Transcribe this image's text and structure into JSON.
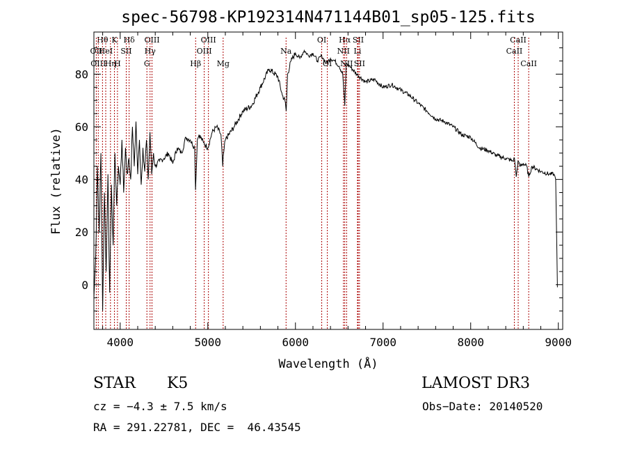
{
  "chart_data": {
    "type": "line",
    "title": "spec-56798-KP192314N471144B01_sp05-125.fits",
    "xlabel": "Wavelength (Å)",
    "ylabel": "Flux (relative)",
    "xlim": [
      3700,
      9050
    ],
    "ylim": [
      -17,
      96
    ],
    "xticks": [
      4000,
      5000,
      6000,
      7000,
      8000,
      9000
    ],
    "yticks": [
      0,
      20,
      40,
      60,
      80
    ],
    "xtick_labels": [
      "4000",
      "5000",
      "6000",
      "7000",
      "8000",
      "9000"
    ],
    "ytick_labels": [
      "0",
      "20",
      "40",
      "60",
      "80"
    ],
    "series": [
      {
        "name": "flux",
        "x": [
          3700,
          3720,
          3740,
          3760,
          3780,
          3800,
          3820,
          3840,
          3860,
          3880,
          3900,
          3920,
          3940,
          3960,
          3980,
          4000,
          4020,
          4040,
          4060,
          4080,
          4100,
          4120,
          4140,
          4160,
          4180,
          4200,
          4220,
          4240,
          4260,
          4280,
          4300,
          4320,
          4340,
          4360,
          4380,
          4400,
          4450,
          4500,
          4550,
          4600,
          4650,
          4700,
          4750,
          4800,
          4850,
          4860,
          4880,
          4900,
          4950,
          5000,
          5050,
          5100,
          5150,
          5170,
          5180,
          5200,
          5300,
          5400,
          5500,
          5600,
          5700,
          5800,
          5850,
          5880,
          5895,
          5910,
          5950,
          6000,
          6050,
          6100,
          6150,
          6200,
          6250,
          6300,
          6350,
          6400,
          6450,
          6500,
          6540,
          6563,
          6580,
          6620,
          6700,
          6800,
          6900,
          7000,
          7100,
          7200,
          7300,
          7400,
          7500,
          7600,
          7700,
          7800,
          7900,
          8000,
          8100,
          8200,
          8300,
          8400,
          8480,
          8500,
          8520,
          8540,
          8560,
          8600,
          8640,
          8662,
          8700,
          8800,
          8900,
          8950,
          8970,
          8990
        ],
        "values": [
          -5,
          10,
          45,
          20,
          50,
          -10,
          35,
          5,
          42,
          -3,
          38,
          15,
          50,
          30,
          45,
          38,
          55,
          35,
          52,
          42,
          48,
          40,
          60,
          45,
          62,
          42,
          55,
          38,
          52,
          43,
          55,
          40,
          58,
          42,
          50,
          45,
          47,
          48,
          50,
          46,
          52,
          50,
          56,
          55,
          52,
          36,
          55,
          57,
          54,
          52,
          58,
          60,
          57,
          45,
          50,
          55,
          60,
          66,
          68,
          75,
          82,
          79,
          72,
          70,
          66,
          80,
          85,
          88,
          86,
          89,
          87,
          88,
          85,
          87,
          84,
          86,
          85,
          83,
          80,
          68,
          84,
          83,
          80,
          77,
          78,
          75,
          76,
          74,
          72,
          69,
          66,
          63,
          62,
          60,
          57,
          56,
          52,
          51,
          49,
          48,
          47,
          48,
          41,
          47,
          45,
          46,
          45,
          41,
          45,
          43,
          42,
          42,
          40,
          -1
        ],
        "color": "#000000"
      }
    ],
    "lines": [
      {
        "label": "Hθ",
        "wave": 3798,
        "row": 1
      },
      {
        "label": "OII",
        "wave": 3727,
        "row": 2
      },
      {
        "label": "OIII",
        "wave": 3750,
        "row": 3
      },
      {
        "label": "HeI",
        "wave": 3835,
        "row": 2
      },
      {
        "label": "Hη",
        "wave": 3889,
        "row": 3
      },
      {
        "label": "K",
        "wave": 3934,
        "row": 1
      },
      {
        "label": "H",
        "wave": 3969,
        "row": 3
      },
      {
        "label": "Hδ",
        "wave": 4102,
        "row": 1
      },
      {
        "label": "SII",
        "wave": 4069,
        "row": 2
      },
      {
        "label": "OIII",
        "wave": 4363,
        "row": 1
      },
      {
        "label": "Hγ",
        "wave": 4341,
        "row": 2
      },
      {
        "label": "G",
        "wave": 4305,
        "row": 3
      },
      {
        "label": "OIII",
        "wave": 5007,
        "row": 1
      },
      {
        "label": "OIII",
        "wave": 4959,
        "row": 2
      },
      {
        "label": "Hβ",
        "wave": 4861,
        "row": 3
      },
      {
        "label": "Mg",
        "wave": 5175,
        "row": 3
      },
      {
        "label": "Na",
        "wave": 5893,
        "row": 2
      },
      {
        "label": "OI",
        "wave": 6300,
        "row": 1
      },
      {
        "label": "OI",
        "wave": 6364,
        "row": 3
      },
      {
        "label": "Hα",
        "wave": 6563,
        "row": 1
      },
      {
        "label": "SII",
        "wave": 6716,
        "row": 1
      },
      {
        "label": "NII",
        "wave": 6548,
        "row": 2
      },
      {
        "label": "Li",
        "wave": 6708,
        "row": 2
      },
      {
        "label": "NII",
        "wave": 6584,
        "row": 3
      },
      {
        "label": "SII",
        "wave": 6731,
        "row": 3
      },
      {
        "label": "CaII",
        "wave": 8542,
        "row": 1
      },
      {
        "label": "CaII",
        "wave": 8498,
        "row": 2
      },
      {
        "label": "CaII",
        "wave": 8662,
        "row": 3
      }
    ],
    "line_color": "#aa0000"
  },
  "info": {
    "object_class": "STAR",
    "subclass": "K5",
    "survey": "LAMOST DR3",
    "cz": "cz = −4.3 ± 7.5 km/s",
    "obs_date": "Obs−Date: 20140520",
    "radec": "RA = 291.22781, DEC =  46.43545"
  }
}
